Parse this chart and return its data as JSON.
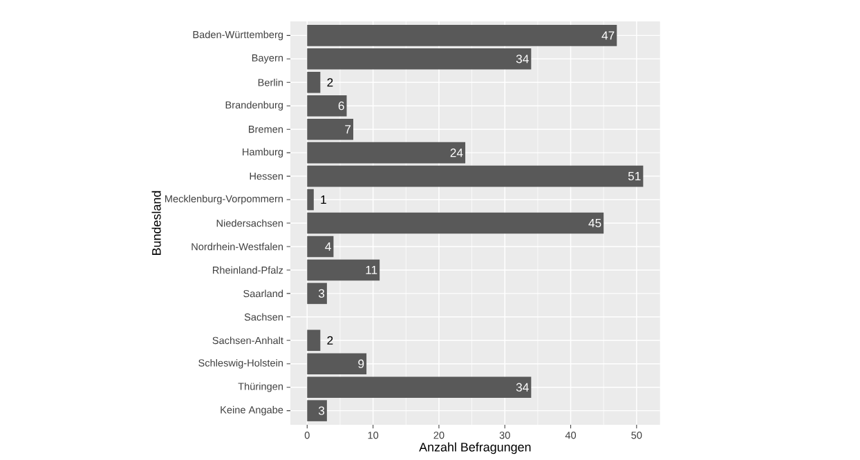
{
  "chart_data": {
    "type": "bar",
    "orientation": "horizontal",
    "xlabel": "Anzahl Befragungen",
    "ylabel": "Bundesland",
    "categories": [
      "Baden-Württemberg",
      "Bayern",
      "Berlin",
      "Brandenburg",
      "Bremen",
      "Hamburg",
      "Hessen",
      "Mecklenburg-Vorpommern",
      "Niedersachsen",
      "Nordrhein-Westfalen",
      "Rheinland-Pfalz",
      "Saarland",
      "Sachsen",
      "Sachsen-Anhalt",
      "Schleswig-Holstein",
      "Thüringen",
      "Keine Angabe"
    ],
    "values": [
      47,
      34,
      2,
      6,
      7,
      24,
      51,
      1,
      45,
      4,
      11,
      3,
      null,
      2,
      9,
      34,
      3
    ],
    "color": "#595959",
    "data_labels": true,
    "xlim": [
      -2.55,
      53.55
    ],
    "xticks": [
      0,
      10,
      20,
      30,
      40,
      50
    ],
    "grid": true
  }
}
